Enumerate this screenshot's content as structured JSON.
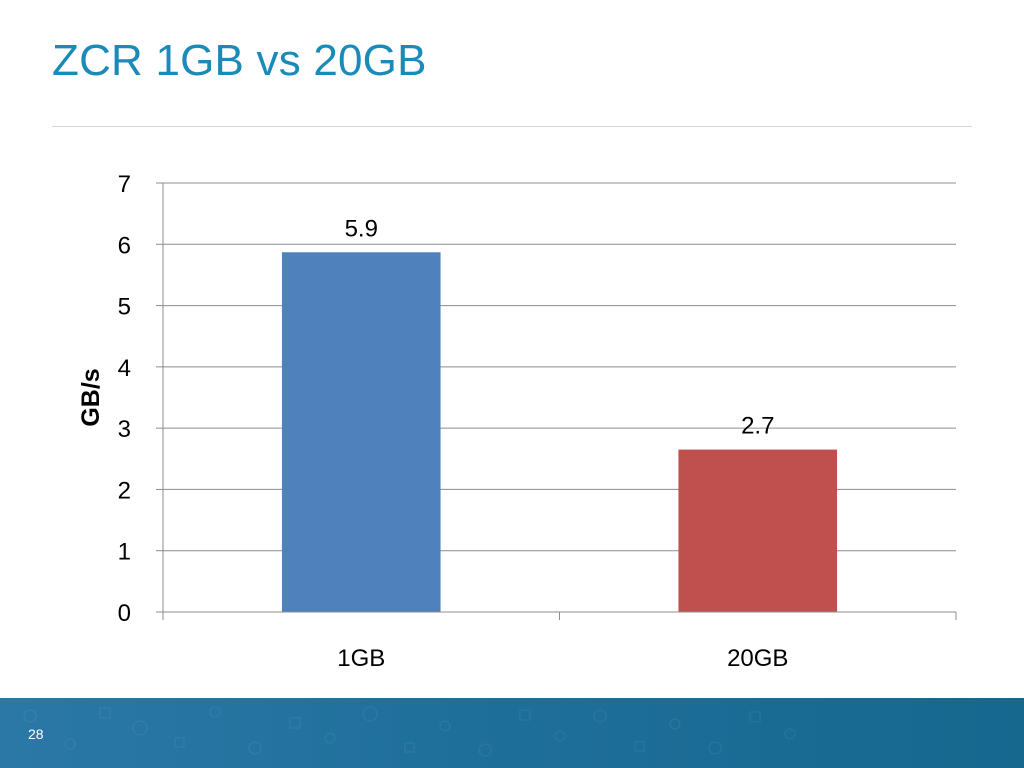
{
  "slide": {
    "title": "ZCR 1GB vs 20GB",
    "page_number": "28"
  },
  "chart_data": {
    "type": "bar",
    "categories": [
      "1GB",
      "20GB"
    ],
    "values": [
      5.87,
      2.65
    ],
    "data_labels": [
      "5.9",
      "2.7"
    ],
    "bar_colors": [
      "#4f81bd",
      "#c0504d"
    ],
    "title": "",
    "xlabel": "",
    "ylabel": "GB/s",
    "ylim": [
      0,
      7
    ],
    "yticks": [
      0,
      1,
      2,
      3,
      4,
      5,
      6,
      7
    ],
    "grid": true,
    "legend": "none"
  },
  "colors": {
    "title": "#1a8bb8",
    "footer": "#1f6f9b",
    "grid": "#8c8c8c"
  }
}
